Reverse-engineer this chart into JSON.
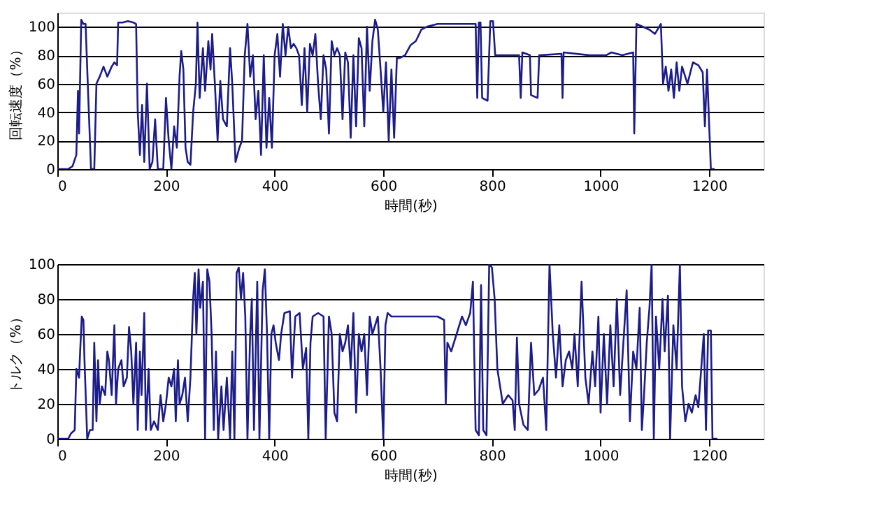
{
  "chart_data": [
    {
      "type": "line",
      "ylabel": "回転速度（%）",
      "xlabel": "時間(秒)",
      "xlim": [
        0,
        1300
      ],
      "xticks": [
        0,
        200,
        400,
        600,
        800,
        1000,
        1200
      ],
      "ylim": [
        0,
        110
      ],
      "yticks": [
        0,
        20,
        40,
        60,
        80,
        100
      ],
      "grid": "y",
      "marker": "none",
      "line_style": "solid",
      "x": [
        0,
        20,
        28,
        35,
        38,
        40,
        44,
        48,
        52,
        57,
        62,
        68,
        72,
        78,
        85,
        92,
        100,
        105,
        110,
        112,
        120,
        130,
        140,
        145,
        148,
        152,
        156,
        160,
        165,
        170,
        175,
        180,
        185,
        195,
        200,
        205,
        210,
        215,
        220,
        225,
        228,
        232,
        236,
        240,
        245,
        250,
        255,
        258,
        262,
        268,
        272,
        278,
        282,
        285,
        290,
        295,
        300,
        305,
        312,
        318,
        322,
        328,
        335,
        340,
        345,
        350,
        355,
        360,
        365,
        370,
        375,
        380,
        385,
        390,
        395,
        400,
        405,
        410,
        415,
        420,
        425,
        430,
        435,
        440,
        445,
        450,
        455,
        460,
        465,
        470,
        475,
        480,
        485,
        490,
        495,
        500,
        505,
        510,
        515,
        520,
        525,
        530,
        535,
        540,
        545,
        550,
        555,
        560,
        565,
        570,
        575,
        580,
        585,
        590,
        595,
        600,
        605,
        610,
        615,
        620,
        625,
        630,
        640,
        650,
        660,
        670,
        680,
        700,
        764,
        770,
        773,
        776,
        779,
        782,
        792,
        797,
        802,
        806,
        840,
        850,
        853,
        856,
        870,
        872,
        884,
        887,
        928,
        930,
        932,
        980,
        1010,
        1020,
        1040,
        1060,
        1062,
        1066,
        1090,
        1100,
        1111,
        1115,
        1120,
        1125,
        1130,
        1135,
        1140,
        1145,
        1150,
        1160,
        1170,
        1180,
        1188,
        1192,
        1196,
        1203,
        1210
      ],
      "series": [
        {
          "color": "#1c1c8a",
          "values": [
            0,
            0,
            2,
            10,
            55,
            25,
            105,
            102,
            102,
            50,
            0,
            0,
            60,
            65,
            72,
            65,
            72,
            75,
            73,
            103,
            103,
            104,
            103,
            102,
            40,
            10,
            45,
            5,
            60,
            0,
            5,
            35,
            0,
            0,
            50,
            20,
            0,
            30,
            15,
            65,
            83,
            70,
            15,
            5,
            3,
            40,
            60,
            103,
            50,
            85,
            55,
            90,
            70,
            95,
            60,
            20,
            62,
            35,
            30,
            85,
            60,
            5,
            15,
            20,
            80,
            102,
            65,
            80,
            35,
            55,
            10,
            80,
            15,
            50,
            15,
            80,
            95,
            65,
            102,
            80,
            100,
            85,
            88,
            85,
            80,
            45,
            85,
            40,
            88,
            80,
            95,
            60,
            35,
            80,
            70,
            25,
            90,
            80,
            85,
            80,
            35,
            82,
            75,
            22,
            80,
            30,
            92,
            85,
            30,
            100,
            55,
            90,
            105,
            98,
            70,
            40,
            75,
            20,
            70,
            22,
            78,
            78,
            80,
            87,
            90,
            98,
            100,
            102,
            102,
            102,
            50,
            103,
            103,
            50,
            48,
            104,
            104,
            80,
            80,
            80,
            50,
            82,
            80,
            52,
            50,
            80,
            81,
            50,
            82,
            80,
            80,
            82,
            80,
            82,
            25,
            102,
            98,
            95,
            102,
            60,
            72,
            55,
            70,
            50,
            75,
            55,
            72,
            60,
            75,
            73,
            68,
            30,
            70,
            0,
            0
          ]
        }
      ]
    },
    {
      "type": "line",
      "ylabel": "トルク（%）",
      "xlabel": "時間(秒)",
      "xlim": [
        0,
        1300
      ],
      "xticks": [
        0,
        200,
        400,
        600,
        800,
        1000,
        1200
      ],
      "ylim": [
        0,
        100
      ],
      "yticks": [
        0,
        20,
        40,
        60,
        80,
        100
      ],
      "grid": "y",
      "marker": "none",
      "line_style": "solid",
      "x": [
        0,
        20,
        25,
        32,
        35,
        40,
        42,
        45,
        48,
        50,
        55,
        60,
        65,
        68,
        72,
        75,
        78,
        82,
        88,
        92,
        95,
        100,
        105,
        108,
        112,
        118,
        122,
        128,
        132,
        136,
        140,
        145,
        148,
        152,
        155,
        160,
        163,
        168,
        172,
        178,
        185,
        190,
        195,
        200,
        205,
        210,
        215,
        218,
        222,
        225,
        230,
        235,
        240,
        245,
        250,
        253,
        256,
        260,
        263,
        268,
        272,
        276,
        280,
        284,
        288,
        292,
        296,
        302,
        306,
        312,
        318,
        322,
        326,
        330,
        334,
        338,
        342,
        346,
        350,
        355,
        358,
        362,
        368,
        372,
        378,
        382,
        386,
        390,
        394,
        398,
        402,
        408,
        412,
        418,
        428,
        432,
        438,
        446,
        452,
        458,
        462,
        466,
        470,
        480,
        490,
        494,
        500,
        505,
        510,
        515,
        520,
        525,
        530,
        535,
        540,
        545,
        550,
        555,
        560,
        565,
        570,
        575,
        580,
        590,
        595,
        600,
        604,
        608,
        615,
        640,
        680,
        700,
        712,
        715,
        718,
        725,
        735,
        745,
        752,
        760,
        765,
        770,
        776,
        780,
        784,
        790,
        795,
        800,
        805,
        810,
        820,
        830,
        838,
        842,
        846,
        850,
        858,
        866,
        872,
        878,
        886,
        894,
        900,
        906,
        912,
        918,
        924,
        930,
        936,
        942,
        948,
        952,
        958,
        965,
        972,
        978,
        985,
        990,
        996,
        1000,
        1006,
        1012,
        1018,
        1024,
        1030,
        1036,
        1042,
        1048,
        1054,
        1060,
        1066,
        1072,
        1076,
        1080,
        1085,
        1090,
        1094,
        1098,
        1102,
        1108,
        1114,
        1118,
        1124,
        1128,
        1134,
        1140,
        1146,
        1150,
        1156,
        1162,
        1168,
        1175,
        1180,
        1190,
        1194,
        1198,
        1203,
        1206,
        1215
      ],
      "series": [
        {
          "color": "#1c1c8a",
          "values": [
            0,
            0,
            3,
            5,
            40,
            35,
            50,
            70,
            68,
            45,
            0,
            5,
            5,
            55,
            10,
            45,
            20,
            30,
            25,
            50,
            45,
            25,
            65,
            20,
            40,
            45,
            30,
            35,
            64,
            50,
            20,
            55,
            5,
            50,
            25,
            72,
            5,
            40,
            5,
            10,
            5,
            25,
            10,
            20,
            35,
            30,
            40,
            10,
            45,
            20,
            25,
            35,
            10,
            35,
            80,
            95,
            60,
            97,
            75,
            90,
            0,
            97,
            90,
            60,
            5,
            50,
            0,
            30,
            5,
            35,
            0,
            50,
            0,
            95,
            98,
            80,
            95,
            70,
            0,
            60,
            80,
            5,
            90,
            0,
            85,
            97,
            60,
            0,
            60,
            65,
            55,
            45,
            60,
            72,
            73,
            35,
            70,
            72,
            40,
            52,
            0,
            55,
            70,
            72,
            70,
            0,
            70,
            60,
            15,
            10,
            60,
            50,
            55,
            65,
            40,
            72,
            15,
            60,
            50,
            60,
            25,
            70,
            60,
            70,
            40,
            0,
            65,
            72,
            70,
            70,
            70,
            70,
            68,
            20,
            55,
            50,
            60,
            70,
            65,
            72,
            90,
            5,
            2,
            88,
            5,
            2,
            100,
            98,
            80,
            40,
            20,
            25,
            22,
            5,
            58,
            20,
            8,
            5,
            55,
            25,
            28,
            35,
            5,
            100,
            60,
            35,
            65,
            30,
            45,
            50,
            40,
            60,
            30,
            90,
            35,
            20,
            50,
            30,
            70,
            15,
            60,
            20,
            65,
            30,
            80,
            25,
            55,
            85,
            10,
            50,
            40,
            75,
            5,
            25,
            55,
            75,
            100,
            0,
            70,
            40,
            80,
            50,
            82,
            0,
            65,
            40,
            100,
            30,
            10,
            20,
            15,
            25,
            18,
            60,
            5,
            62,
            62,
            0,
            0
          ]
        }
      ]
    }
  ]
}
